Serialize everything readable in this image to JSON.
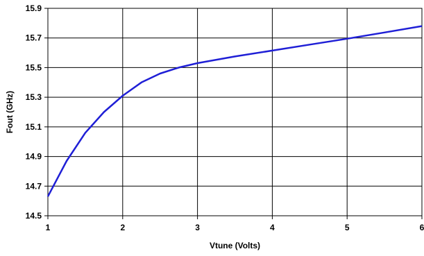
{
  "chart_data": {
    "type": "line",
    "title": "",
    "xlabel": "Vtune (Volts)",
    "ylabel": "Fout (GHz)",
    "xlim": [
      1,
      6
    ],
    "ylim": [
      14.5,
      15.9
    ],
    "x_ticks": [
      "1",
      "2",
      "3",
      "4",
      "5",
      "6"
    ],
    "y_ticks": [
      "14.5",
      "14.7",
      "14.9",
      "15.1",
      "15.3",
      "15.5",
      "15.7",
      "15.9"
    ],
    "grid": true,
    "legend": "none",
    "series": [
      {
        "color": "#1f1fd6",
        "x": [
          1.0,
          1.25,
          1.5,
          1.75,
          2.0,
          2.25,
          2.5,
          2.75,
          3.0,
          3.5,
          4.0,
          4.5,
          5.0,
          5.5,
          6.0
        ],
        "y": [
          14.63,
          14.87,
          15.06,
          15.2,
          15.31,
          15.4,
          15.46,
          15.5,
          15.53,
          15.575,
          15.615,
          15.655,
          15.695,
          15.737,
          15.78
        ]
      }
    ]
  }
}
